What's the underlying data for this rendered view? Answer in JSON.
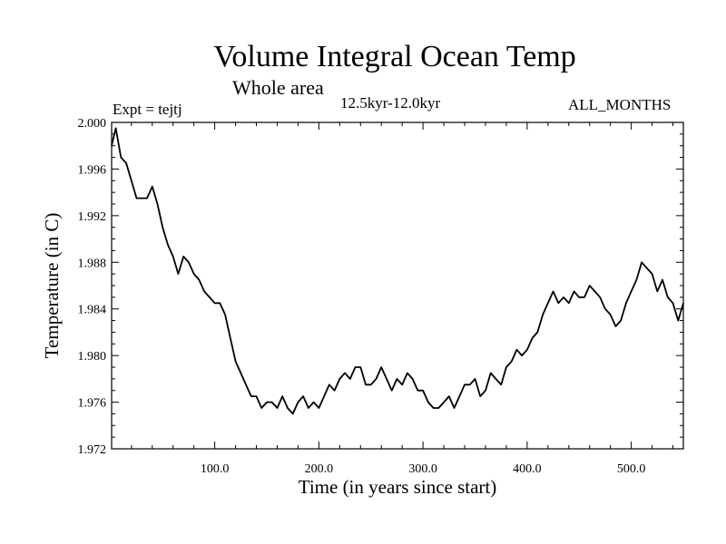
{
  "chart_data": {
    "type": "line",
    "title": "Volume Integral Ocean Temp",
    "subtitle": "Whole area",
    "period_label": "12.5kyr-12.0kyr",
    "experiment_label": "Expt = tejtj",
    "months_label": "ALL_MONTHS",
    "xlabel": "Time (in years since start)",
    "ylabel": "Temperature (in C)",
    "xlim": [
      1,
      550
    ],
    "ylim": [
      1.972,
      2.0
    ],
    "x_ticks": [
      100,
      200,
      300,
      400,
      500
    ],
    "x_tick_labels": [
      "100.0",
      "200.0",
      "300.0",
      "400.0",
      "500.0"
    ],
    "y_ticks": [
      1.972,
      1.976,
      1.98,
      1.984,
      1.988,
      1.992,
      1.996,
      2.0
    ],
    "y_tick_labels": [
      "1.972",
      "1.976",
      "1.980",
      "1.984",
      "1.988",
      "1.992",
      "1.996",
      "2.000"
    ],
    "series": [
      {
        "name": "Volume integral ocean temperature",
        "color": "#000000",
        "x": [
          1,
          5,
          10,
          15,
          20,
          25,
          30,
          35,
          40,
          45,
          50,
          55,
          60,
          65,
          70,
          75,
          80,
          85,
          90,
          95,
          100,
          105,
          110,
          115,
          120,
          125,
          130,
          135,
          140,
          145,
          150,
          155,
          160,
          165,
          170,
          175,
          180,
          185,
          190,
          195,
          200,
          205,
          210,
          215,
          220,
          225,
          230,
          235,
          240,
          245,
          250,
          255,
          260,
          265,
          270,
          275,
          280,
          285,
          290,
          295,
          300,
          305,
          310,
          315,
          320,
          325,
          330,
          335,
          340,
          345,
          350,
          355,
          360,
          365,
          370,
          375,
          380,
          385,
          390,
          395,
          400,
          405,
          410,
          415,
          420,
          425,
          430,
          435,
          440,
          445,
          450,
          455,
          460,
          465,
          470,
          475,
          480,
          485,
          490,
          495,
          500,
          505,
          510,
          515,
          520,
          525,
          530,
          535,
          540,
          545,
          550
        ],
        "values": [
          1.998,
          1.9995,
          1.997,
          1.9965,
          1.995,
          1.9935,
          1.9935,
          1.9935,
          1.9945,
          1.993,
          1.991,
          1.9895,
          1.9885,
          1.987,
          1.9885,
          1.988,
          1.987,
          1.9865,
          1.9855,
          1.985,
          1.9845,
          1.9845,
          1.9835,
          1.9815,
          1.9795,
          1.9785,
          1.9775,
          1.9765,
          1.9765,
          1.9755,
          1.976,
          1.976,
          1.9755,
          1.9765,
          1.9755,
          1.975,
          1.976,
          1.9765,
          1.9755,
          1.976,
          1.9755,
          1.9765,
          1.9775,
          1.977,
          1.978,
          1.9785,
          1.978,
          1.979,
          1.979,
          1.9775,
          1.9775,
          1.978,
          1.979,
          1.978,
          1.977,
          1.978,
          1.9775,
          1.9785,
          1.978,
          1.977,
          1.977,
          1.976,
          1.9755,
          1.9755,
          1.976,
          1.9765,
          1.9755,
          1.9765,
          1.9775,
          1.9775,
          1.978,
          1.9765,
          1.977,
          1.9785,
          1.978,
          1.9775,
          1.979,
          1.9795,
          1.9805,
          1.98,
          1.9805,
          1.9815,
          1.982,
          1.9835,
          1.9845,
          1.9855,
          1.9845,
          1.985,
          1.9845,
          1.9855,
          1.985,
          1.985,
          1.986,
          1.9855,
          1.985,
          1.984,
          1.9835,
          1.9825,
          1.983,
          1.9845,
          1.9855,
          1.9865,
          1.988,
          1.9875,
          1.987,
          1.9855,
          1.9865,
          1.985,
          1.9845,
          1.983,
          1.9845
        ]
      }
    ]
  }
}
